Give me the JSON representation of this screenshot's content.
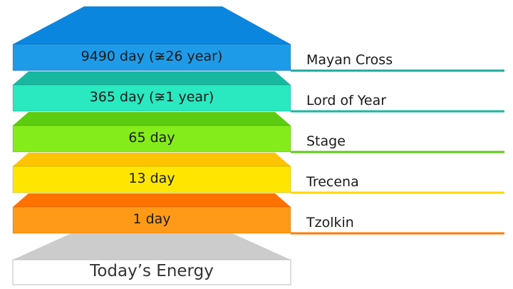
{
  "layers": [
    {
      "period": "9490 day (≆26 year)",
      "name": "Mayan Cross",
      "front": "#1e9be8",
      "top": "#0a86de",
      "line": "#1aa8a0"
    },
    {
      "period": "365 day (≆1 year)",
      "name": "Lord of Year",
      "front": "#2ae8c0",
      "top": "#18b8a0",
      "line": "#18b8a0"
    },
    {
      "period": "65 day",
      "name": "Stage",
      "front": "#84ec1a",
      "top": "#5ccc10",
      "line": "#5ccc10"
    },
    {
      "period": "13 day",
      "name": "Trecena",
      "front": "#ffe600",
      "top": "#ffc400",
      "line": "#ffd400"
    },
    {
      "period": "1 day",
      "name": "Tzolkin",
      "front": "#ff9a18",
      "top": "#ff7200",
      "line": "#ff7a00"
    }
  ],
  "base": {
    "label": "Today’s Energy",
    "front": "#ffffff",
    "top": "#cccccc"
  }
}
